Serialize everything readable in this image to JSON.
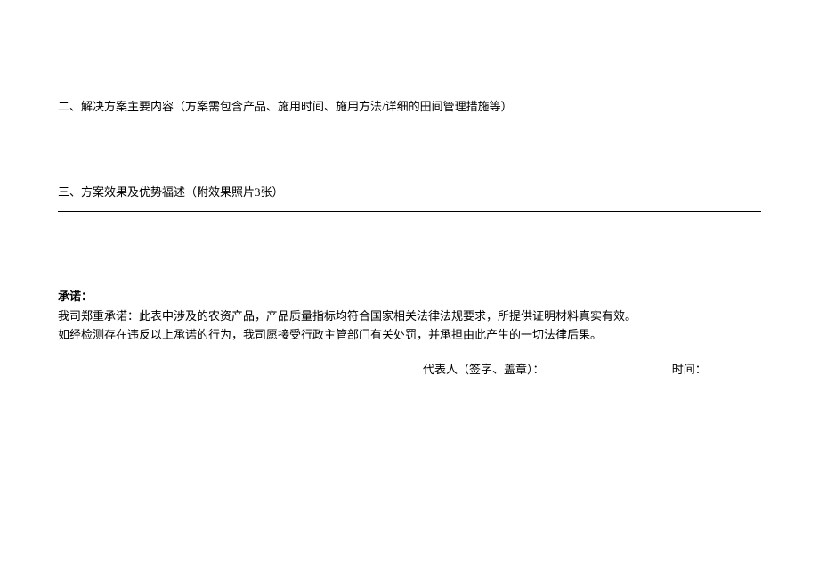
{
  "section_two": {
    "heading": "二、解决方案主要内容（方案需包含产品、施用时间、施用方法/详细的田间管理措施等）"
  },
  "section_three": {
    "heading": "三、方案效果及优势福述（附效果照片3张）"
  },
  "commitment": {
    "title": "承诺：",
    "line1": "我司郑重承诺：此表中涉及的农资产品，产品质量指标均符合国家相关法律法规要求，所提供证明材料真实有效。",
    "line2": "如经检测存在违反以上承诺的行为，我司愿接受行政主管部门有关处罚，并承担由此产生的一切法律后果。"
  },
  "signature": {
    "representative_label": "代表人（签字、盖章）：",
    "time_label": "时间："
  }
}
